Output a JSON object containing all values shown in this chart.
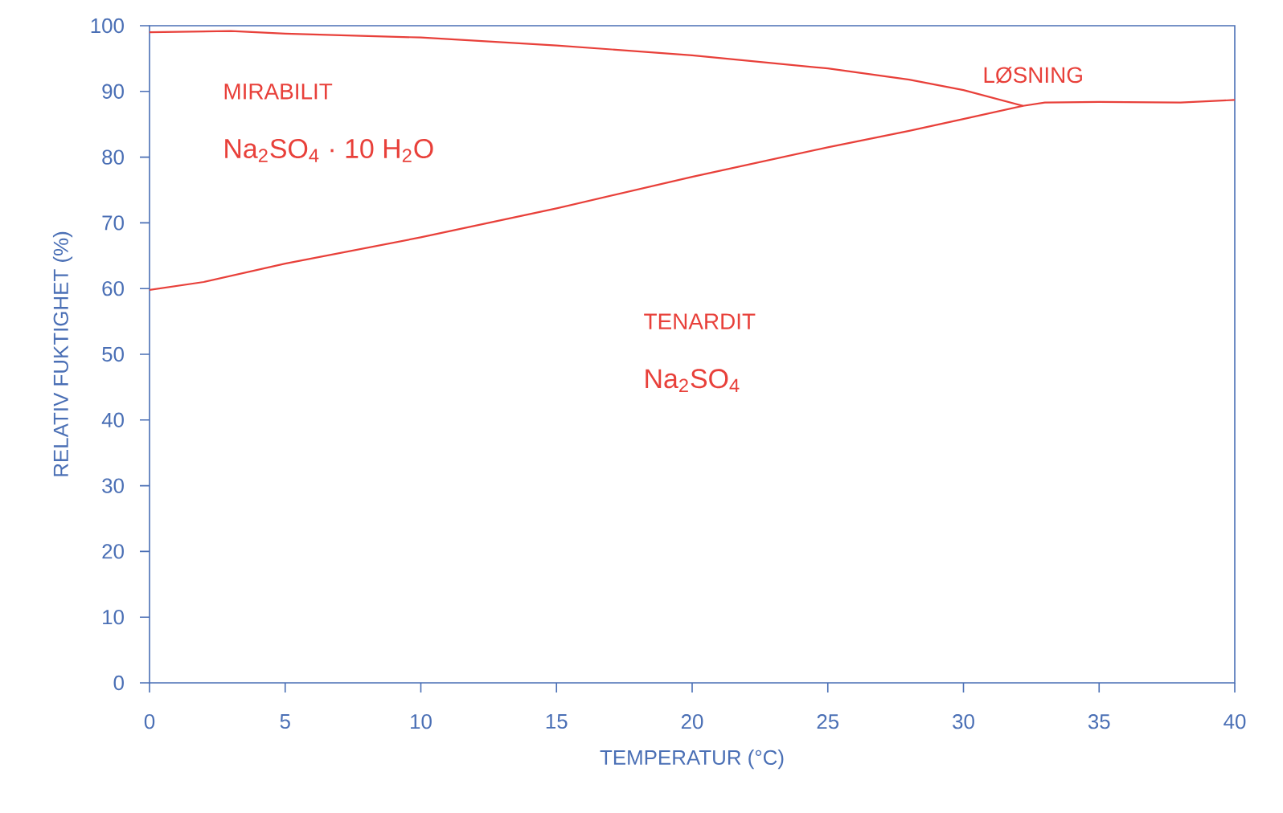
{
  "chart_data": {
    "type": "line",
    "xlabel": "TEMPERATUR (°C)",
    "ylabel": "RELATIV FUKTIGHET (%)",
    "xlim": [
      0,
      40
    ],
    "ylim": [
      0,
      100
    ],
    "xticks": [
      0,
      5,
      10,
      15,
      20,
      25,
      30,
      35,
      40
    ],
    "yticks": [
      0,
      10,
      20,
      30,
      40,
      50,
      60,
      70,
      80,
      90,
      100
    ],
    "line_style": "solid",
    "series": [
      {
        "color": "#e8403a",
        "x": [
          0,
          3,
          5,
          10,
          15,
          20,
          25,
          28,
          30,
          32.2,
          33,
          35,
          38,
          40
        ],
        "values": [
          99,
          99.2,
          98.8,
          98.2,
          97,
          95.5,
          93.5,
          91.8,
          90.2,
          87.8,
          88.3,
          88.4,
          88.3,
          88.7
        ]
      },
      {
        "color": "#e8403a",
        "x": [
          0,
          2,
          5,
          10,
          15,
          20,
          25,
          28,
          30,
          32.2
        ],
        "values": [
          59.8,
          61,
          63.8,
          67.8,
          72.2,
          77,
          81.5,
          84,
          85.8,
          87.8
        ]
      }
    ],
    "annotations": [
      "MIRABILIT",
      "Na$_{2}$SO$_{4}$ · 10 H$_{2}$O",
      "TENARDIT",
      "Na$_{2}$SO$_{4}$",
      "LØSNING"
    ]
  }
}
